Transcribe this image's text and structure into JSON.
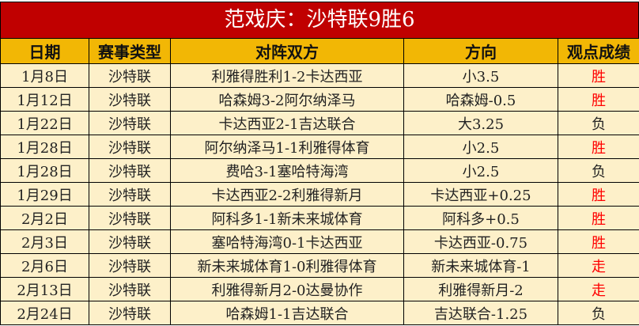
{
  "title": "范戏庆：沙特联9胜6",
  "headers": [
    "日期",
    "赛事类型",
    "对阵双方",
    "方向",
    "观点成绩"
  ],
  "colors": {
    "title_bg": "#c00000",
    "header_bg": "#f2b705",
    "row_bg": "#fdf0c9",
    "win_text": "#ff0000"
  },
  "rows": [
    {
      "date": "1月8日",
      "type": "沙特联",
      "match": "利雅得胜利1-2卡达西亚",
      "pick": "小3.5",
      "result": "胜"
    },
    {
      "date": "1月12日",
      "type": "沙特联",
      "match": "哈森姆3-2阿尔纳泽马",
      "pick": "哈森姆-0.5",
      "result": "胜"
    },
    {
      "date": "1月22日",
      "type": "沙特联",
      "match": "卡达西亚2-1吉达联合",
      "pick": "大3.25",
      "result": "负"
    },
    {
      "date": "1月28日",
      "type": "沙特联",
      "match": "阿尔纳泽马1-1利雅得体育",
      "pick": "小2.5",
      "result": "胜"
    },
    {
      "date": "1月28日",
      "type": "沙特联",
      "match": "费哈3-1塞哈特海湾",
      "pick": "小2.5",
      "result": "负"
    },
    {
      "date": "1月29日",
      "type": "沙特联",
      "match": "卡达西亚2-2利雅得新月",
      "pick": "卡达西亚+0.25",
      "result": "胜"
    },
    {
      "date": "2月2日",
      "type": "沙特联",
      "match": "阿科多1-1新未来城体育",
      "pick": "阿科多+0.5",
      "result": "胜"
    },
    {
      "date": "2月3日",
      "type": "沙特联",
      "match": "塞哈特海湾0-1卡达西亚",
      "pick": "卡达西亚-0.75",
      "result": "胜"
    },
    {
      "date": "2月6日",
      "type": "沙特联",
      "match": "新未来城体育1-0利雅得体育",
      "pick": "新未来城体育-1",
      "result": "走"
    },
    {
      "date": "2月13日",
      "type": "沙特联",
      "match": "利雅得新月2-0达曼协作",
      "pick": "利雅得新月-2",
      "result": "走"
    },
    {
      "date": "2月24日",
      "type": "沙特联",
      "match": "哈森姆1-1吉达联合",
      "pick": "吉达联合-1.25",
      "result": "负"
    }
  ]
}
